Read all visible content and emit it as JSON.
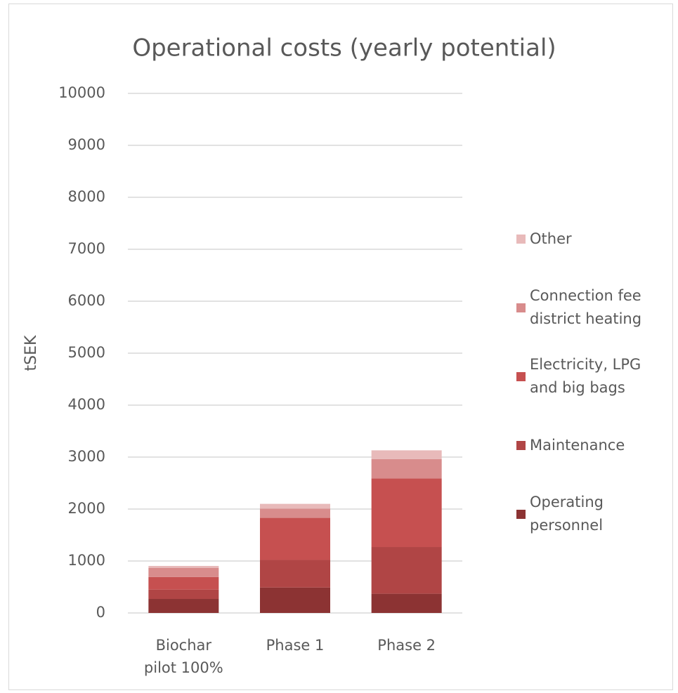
{
  "chart_data": {
    "type": "bar",
    "stacked": true,
    "title": "Operational costs (yearly potential)",
    "y_label": "tSEK",
    "categories": [
      "Biochar pilot 100%",
      "Phase 1",
      "Phase 2"
    ],
    "series": [
      {
        "name": "Operating personnel",
        "color": "#8c3333",
        "values": [
          270,
          490,
          370
        ]
      },
      {
        "name": "Maintenance",
        "color": "#b04545",
        "values": [
          180,
          530,
          900
        ]
      },
      {
        "name": "Electricity, LPG and big bags",
        "color": "#c65050",
        "values": [
          240,
          810,
          1320
        ]
      },
      {
        "name": "Connection fee district heating",
        "color": "#d88c8c",
        "values": [
          175,
          180,
          370
        ]
      },
      {
        "name": "Other",
        "color": "#e8baba",
        "values": [
          40,
          90,
          170
        ]
      }
    ],
    "ylim": [
      0,
      10000
    ],
    "yticks": [
      0,
      1000,
      2000,
      3000,
      4000,
      5000,
      6000,
      7000,
      8000,
      9000,
      10000
    ],
    "grid": true,
    "legend": "right"
  }
}
